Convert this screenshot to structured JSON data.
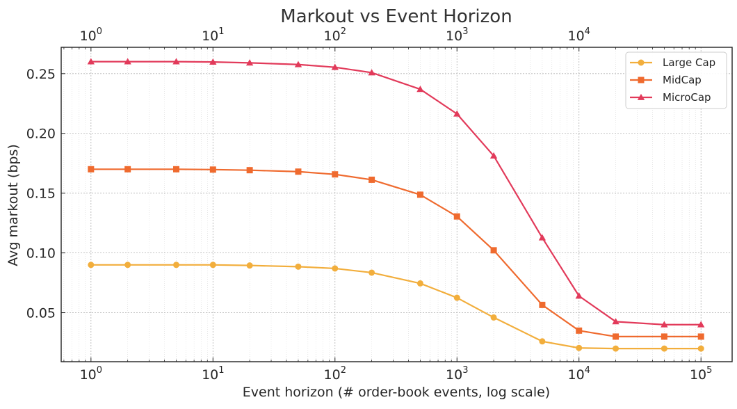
{
  "chart_data": {
    "type": "line",
    "title": "Markout vs Event Horizon",
    "xlabel": "Event horizon (# order-book events, log scale)",
    "ylabel": "Avg markout (bps)",
    "x_scale": "log",
    "xlim": [
      0.57,
      180000
    ],
    "ylim": [
      0.009,
      0.272
    ],
    "grid": true,
    "legend_position": "top-right",
    "y_ticks": [
      0.05,
      0.1,
      0.15,
      0.2,
      0.25
    ],
    "y_tick_labels": [
      "0.05",
      "0.10",
      "0.15",
      "0.20",
      "0.25"
    ],
    "x_ticks_bottom": [
      1,
      10,
      100,
      1000,
      10000,
      100000
    ],
    "x_ticks_bottom_exponents": [
      "0",
      "1",
      "2",
      "3",
      "4",
      "5"
    ],
    "x_ticks_top": [
      1,
      10,
      100,
      1000,
      10000
    ],
    "x_ticks_top_exponents": [
      "0",
      "1",
      "2",
      "3",
      "4"
    ],
    "x_tick_base": "10",
    "x": [
      1,
      2,
      5,
      10,
      20,
      50,
      100,
      200,
      500,
      1000,
      2000,
      5000,
      10000,
      20000,
      50000,
      100000
    ],
    "series": [
      {
        "name": "Large Cap",
        "color": "#f2ae3c",
        "marker": "circle",
        "values": [
          0.09,
          0.09,
          0.09,
          0.09,
          0.0895,
          0.0885,
          0.087,
          0.0835,
          0.0745,
          0.0625,
          0.046,
          0.026,
          0.0205,
          0.02,
          0.02,
          0.02
        ]
      },
      {
        "name": "MidCap",
        "color": "#ef6a2e",
        "marker": "square",
        "values": [
          0.17,
          0.17,
          0.17,
          0.1697,
          0.1692,
          0.168,
          0.1657,
          0.1612,
          0.1487,
          0.1305,
          0.1022,
          0.0565,
          0.035,
          0.03,
          0.03,
          0.03
        ]
      },
      {
        "name": "MicroCap",
        "color": "#e23a5a",
        "marker": "triangle",
        "values": [
          0.26,
          0.26,
          0.26,
          0.2597,
          0.259,
          0.2576,
          0.2553,
          0.2508,
          0.2369,
          0.2163,
          0.1812,
          0.1127,
          0.064,
          0.0425,
          0.04,
          0.04
        ]
      }
    ]
  }
}
